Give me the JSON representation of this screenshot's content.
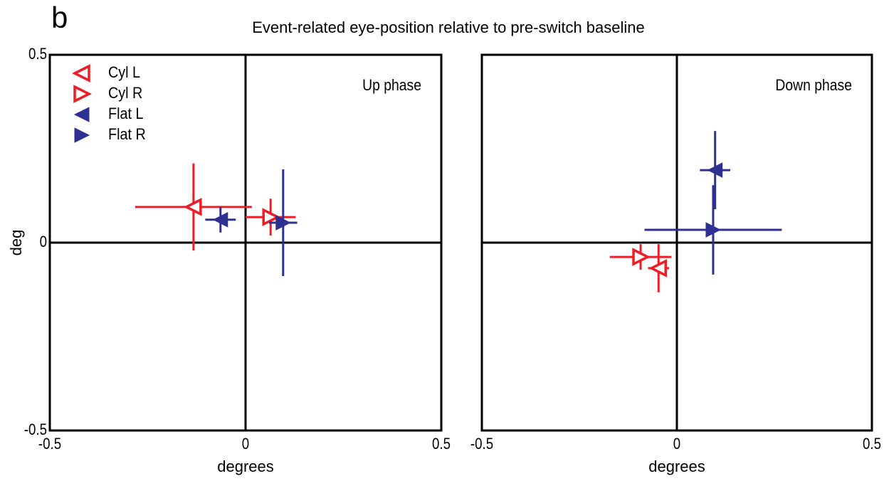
{
  "figure": {
    "label": "b",
    "title": "Event-related eye-position relative to pre-switch baseline"
  },
  "chart_data": [
    {
      "type": "scatter",
      "subtitle": "Up phase",
      "xlabel": "degrees",
      "ylabel": "deg",
      "xlim": [
        -0.5,
        0.5
      ],
      "ylim": [
        -0.5,
        0.5
      ],
      "xticks": [
        -0.5,
        0,
        0.5
      ],
      "yticks": [
        -0.5,
        0,
        0.5
      ],
      "zero_lines": true,
      "legend": "upper left",
      "series": [
        {
          "name": "Cyl L",
          "color": "#ee1c24",
          "marker": "triangle-left-open",
          "x": [
            -0.133
          ],
          "values": [
            0.095
          ],
          "xerr": [
            0.149
          ],
          "yerr": [
            0.116
          ]
        },
        {
          "name": "Cyl R",
          "color": "#ee1c24",
          "marker": "triangle-right-open",
          "x": [
            0.064
          ],
          "values": [
            0.068
          ],
          "xerr": [
            0.064
          ],
          "yerr": [
            0.049
          ]
        },
        {
          "name": "Flat L",
          "color": "#2e3192",
          "marker": "triangle-left",
          "x": [
            -0.064
          ],
          "values": [
            0.061
          ],
          "xerr": [
            0.039
          ],
          "yerr": [
            0.034
          ]
        },
        {
          "name": "Flat R",
          "color": "#2e3192",
          "marker": "triangle-right",
          "x": [
            0.096
          ],
          "values": [
            0.053
          ],
          "xerr": [
            0.036
          ],
          "yerr": [
            0.142
          ]
        }
      ]
    },
    {
      "type": "scatter",
      "subtitle": "Down phase",
      "xlabel": "degrees",
      "xlim": [
        -0.5,
        0.5
      ],
      "ylim": [
        -0.5,
        0.5
      ],
      "xticks": [
        -0.5,
        0,
        0.5
      ],
      "zero_lines": true,
      "series": [
        {
          "color": "#ee1c24",
          "marker": "triangle-left-open",
          "x": [
            -0.047
          ],
          "values": [
            -0.068
          ],
          "xerr": [
            0.027
          ],
          "yerr": [
            0.064
          ]
        },
        {
          "color": "#ee1c24",
          "marker": "triangle-right-open",
          "x": [
            -0.093
          ],
          "values": [
            -0.038
          ],
          "xerr": [
            0.079
          ],
          "yerr": [
            0.034
          ]
        },
        {
          "color": "#2e3192",
          "marker": "triangle-left",
          "x": [
            0.098
          ],
          "values": [
            0.193
          ],
          "xerr": [
            0.039
          ],
          "yerr": [
            0.104
          ]
        },
        {
          "color": "#2e3192",
          "marker": "triangle-right",
          "x": [
            0.093
          ],
          "values": [
            0.034
          ],
          "xerr": [
            0.176
          ],
          "yerr": [
            0.119
          ]
        }
      ]
    }
  ]
}
